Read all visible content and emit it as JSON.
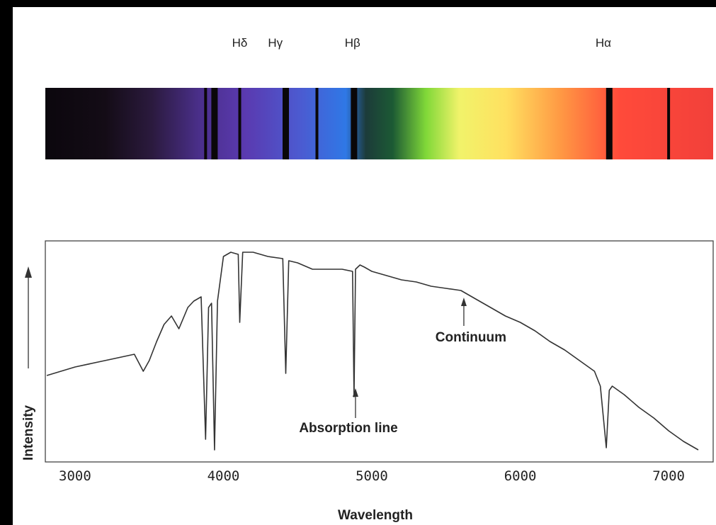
{
  "chart_data": {
    "type": "line",
    "xlabel": "Wavelength",
    "ylabel": "Intensity",
    "xlim": [
      2800,
      7300
    ],
    "x_ticks": [
      3000,
      4000,
      5000,
      6000,
      7000
    ],
    "spectral_line_labels": [
      {
        "text": "Hδ",
        "wavelength": 4110
      },
      {
        "text": "Hγ",
        "wavelength": 4350
      },
      {
        "text": "Hβ",
        "wavelength": 4870
      },
      {
        "text": "Hα",
        "wavelength": 6560
      }
    ],
    "absorption_bands": [
      3880,
      3940,
      4110,
      4420,
      4630,
      4880,
      6600,
      7000
    ],
    "annotations": [
      {
        "text_bold": "Absorption",
        "text": " line",
        "wavelength": 4890
      },
      {
        "text": "Continuum",
        "wavelength": 5620
      }
    ],
    "series": [
      {
        "x": [
          2810,
          3000,
          3200,
          3400,
          3460,
          3500,
          3550,
          3600,
          3650,
          3700,
          3760,
          3800,
          3850,
          3880,
          3900,
          3920,
          3940,
          3960,
          4000,
          4050,
          4100,
          4110,
          4130,
          4200,
          4300,
          4400,
          4420,
          4440,
          4500,
          4600,
          4800,
          4870,
          4880,
          4890,
          4920,
          4950,
          5000,
          5100,
          5200,
          5300,
          5400,
          5500,
          5600,
          5700,
          5800,
          5900,
          6000,
          6100,
          6200,
          6300,
          6400,
          6500,
          6540,
          6580,
          6600,
          6620,
          6660,
          6700,
          6800,
          6900,
          7000,
          7100,
          7200
        ],
        "y": [
          0.4,
          0.44,
          0.47,
          0.5,
          0.42,
          0.47,
          0.56,
          0.64,
          0.68,
          0.62,
          0.72,
          0.75,
          0.77,
          0.1,
          0.72,
          0.74,
          0.05,
          0.75,
          0.96,
          0.98,
          0.97,
          0.65,
          0.98,
          0.98,
          0.96,
          0.95,
          0.41,
          0.94,
          0.93,
          0.9,
          0.9,
          0.89,
          0.3,
          0.9,
          0.92,
          0.91,
          0.89,
          0.87,
          0.85,
          0.84,
          0.82,
          0.81,
          0.8,
          0.76,
          0.72,
          0.68,
          0.65,
          0.61,
          0.56,
          0.52,
          0.47,
          0.42,
          0.35,
          0.06,
          0.33,
          0.35,
          0.33,
          0.31,
          0.25,
          0.2,
          0.14,
          0.09,
          0.05
        ]
      }
    ]
  },
  "colors": {
    "frame": "#000000",
    "paper": "#ffffff",
    "ink": "#222222"
  }
}
